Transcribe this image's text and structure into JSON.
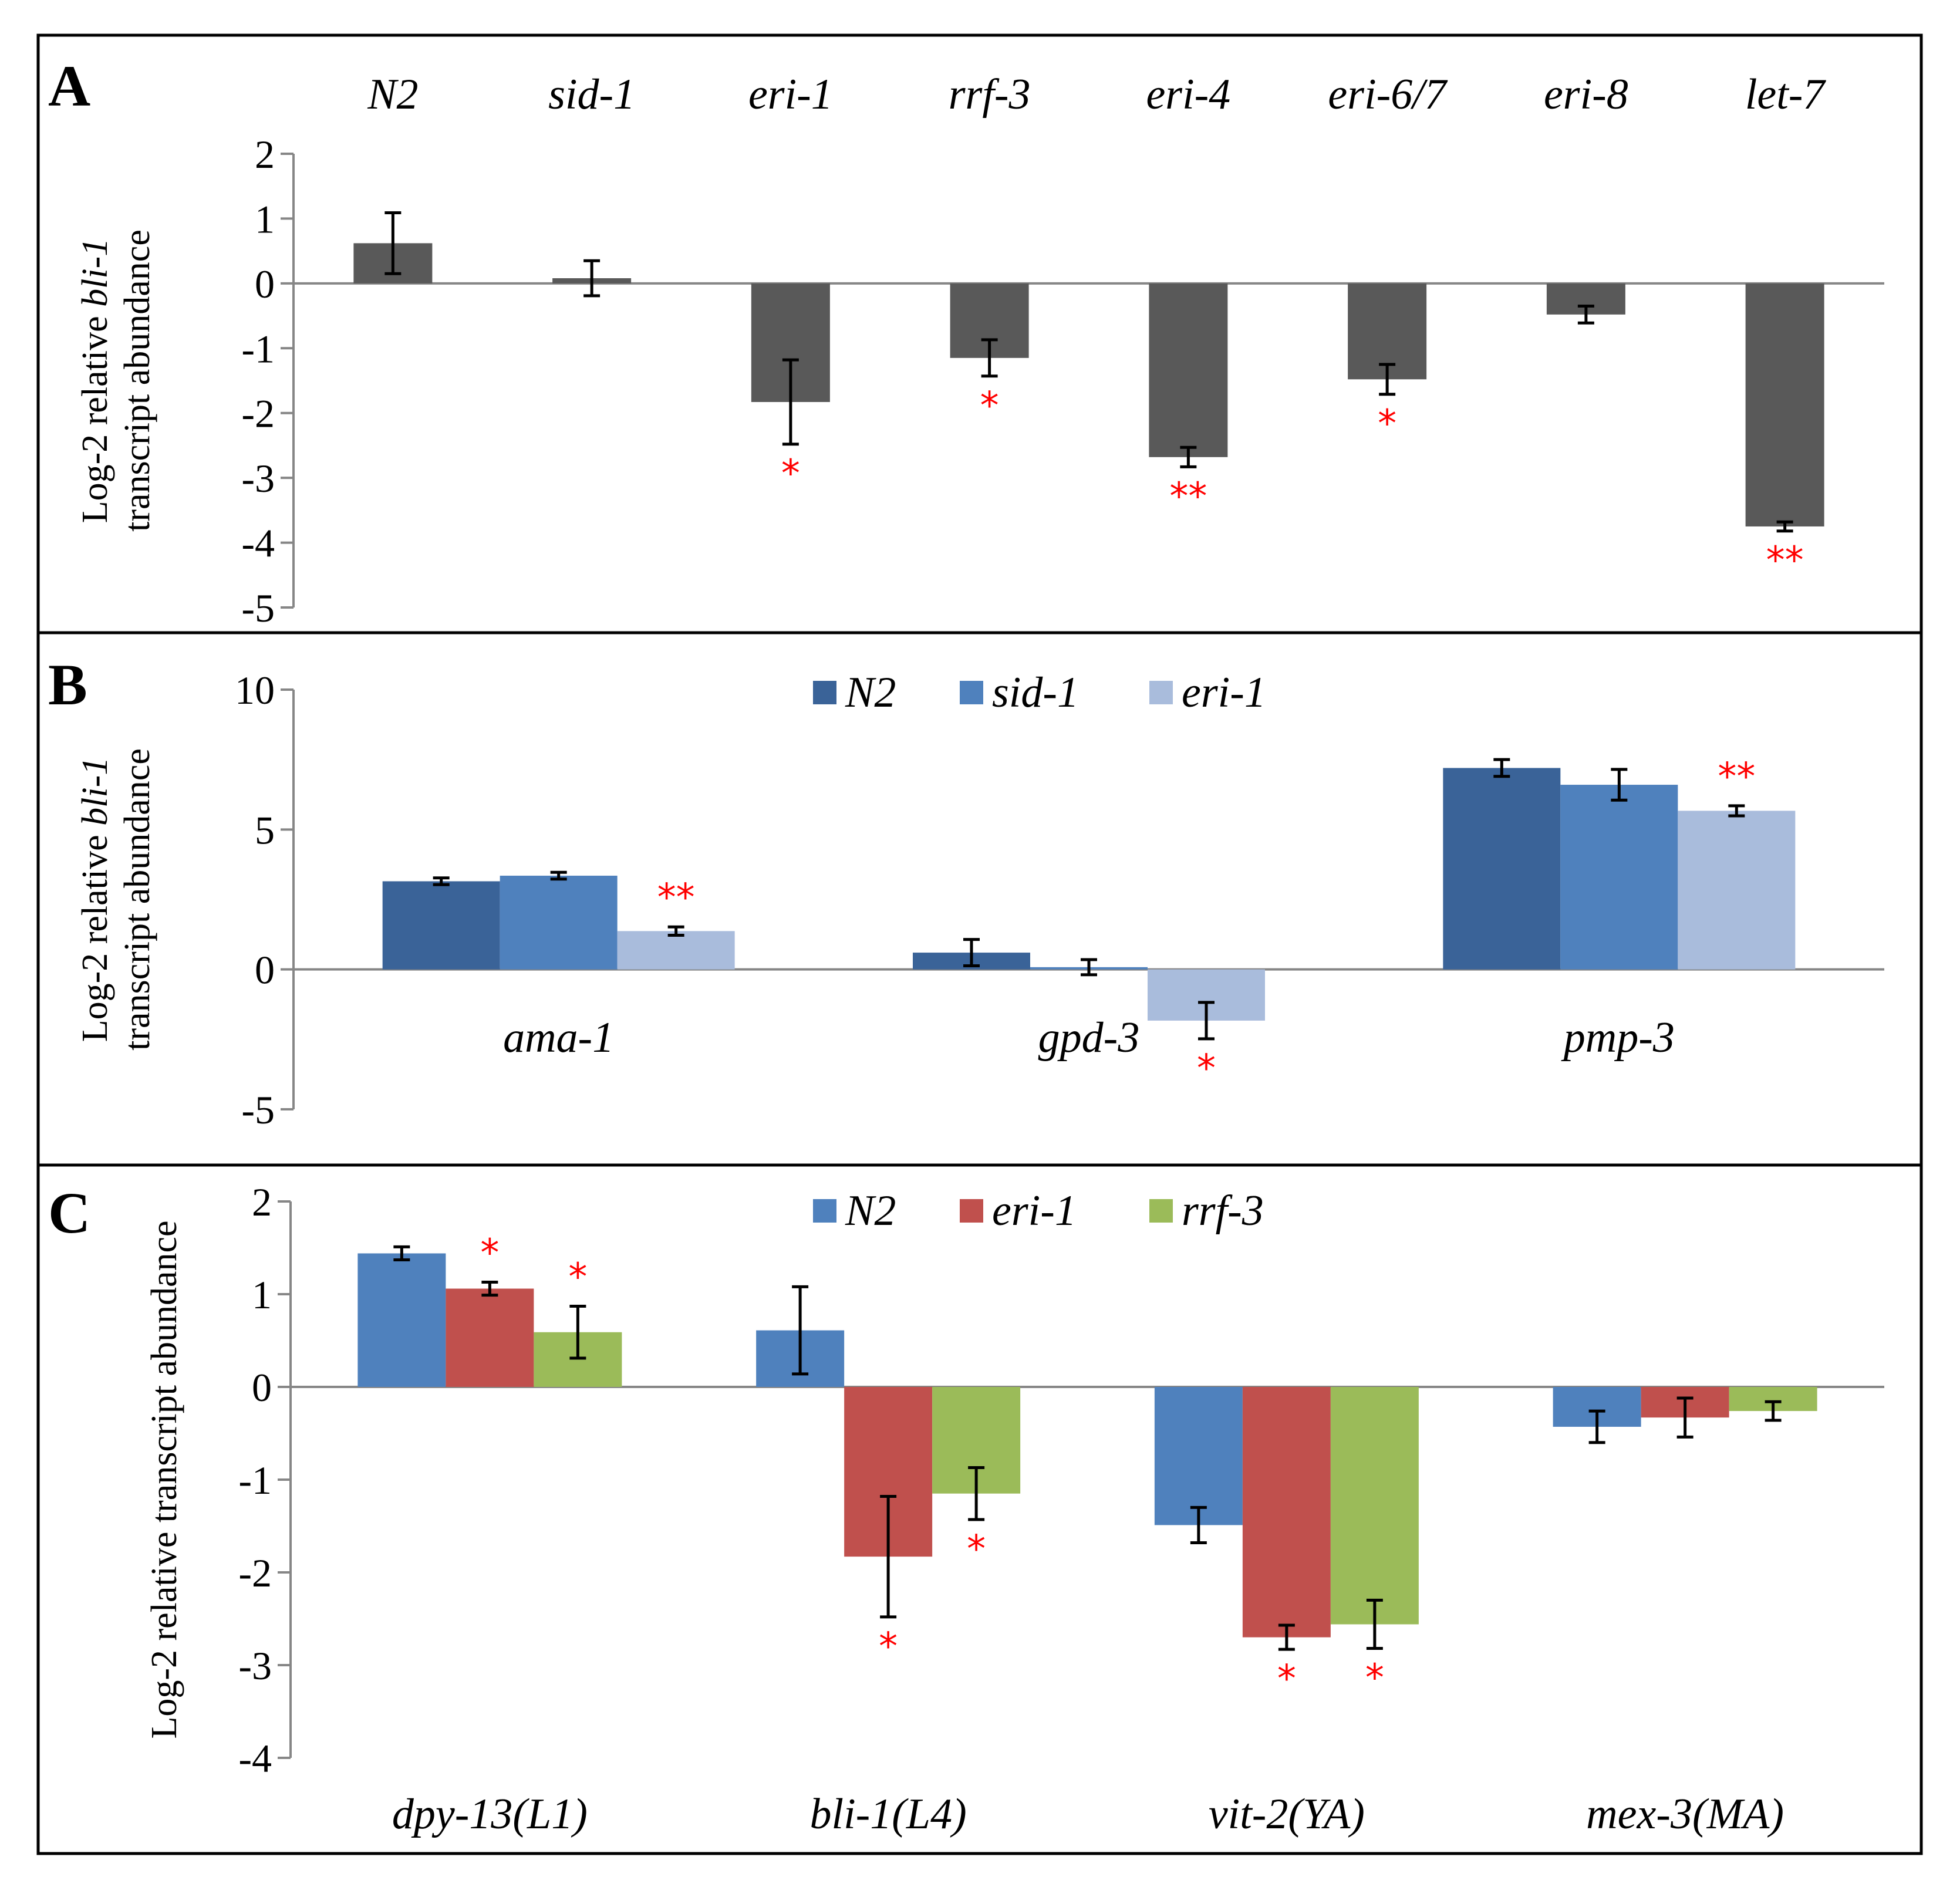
{
  "figure": {
    "panels": [
      {
        "letter": "A",
        "ylabel_parts": [
          "Log-2 relative ",
          "bli-1"
        ],
        "ylabel_line2": "transcript abundance",
        "legend": []
      },
      {
        "letter": "B",
        "ylabel_parts": [
          "Log-2 relative ",
          "bli-1"
        ],
        "ylabel_line2": "transcript abundance",
        "legend": [
          "N2",
          "sid-1",
          "eri-1"
        ]
      },
      {
        "letter": "C",
        "ylabel_parts": [
          "Log-2 relative transcript abundance",
          ""
        ],
        "ylabel_line2": "",
        "legend": [
          "N2",
          "eri-1",
          "rrf-3"
        ]
      }
    ]
  },
  "chart_data": [
    {
      "type": "bar",
      "panel": "A",
      "categories": [
        "N2",
        "sid-1",
        "eri-1",
        "rrf-3",
        "eri-4",
        "eri-6/7",
        "eri-8",
        "let-7"
      ],
      "category_label_position": "top",
      "ylabel": "Log-2 relative bli-1 transcript abundance",
      "ylim": [
        -5,
        2
      ],
      "yticks": [
        "2",
        "1",
        "0",
        "-1",
        "-2",
        "-3",
        "-4",
        "-5"
      ],
      "series": [
        {
          "name": "",
          "color": "#595959",
          "values": [
            0.62,
            0.08,
            -1.83,
            -1.15,
            -2.68,
            -1.48,
            -0.48,
            -3.75
          ],
          "errors": [
            0.47,
            0.27,
            0.65,
            0.28,
            0.15,
            0.23,
            0.13,
            0.07
          ],
          "significance": [
            "",
            "",
            "*",
            "*",
            "**",
            "*",
            "",
            "**"
          ]
        }
      ]
    },
    {
      "type": "bar",
      "panel": "B",
      "categories": [
        "ama-1",
        "gpd-3",
        "pmp-3"
      ],
      "category_label_position": "below-zero",
      "ylabel": "Log-2 relative bli-1 transcript abundance",
      "ylim": [
        -5,
        10
      ],
      "yticks": [
        "10",
        "5",
        "0",
        "-5"
      ],
      "legend_position": "top-center",
      "series": [
        {
          "name": "N2",
          "color": "#3a6398",
          "values": [
            3.15,
            0.6,
            7.2
          ],
          "errors": [
            0.12,
            0.47,
            0.3
          ],
          "significance": [
            "",
            "",
            ""
          ]
        },
        {
          "name": "sid-1",
          "color": "#4f81bd",
          "values": [
            3.35,
            0.08,
            6.6
          ],
          "errors": [
            0.12,
            0.27,
            0.55
          ],
          "significance": [
            "",
            "",
            ""
          ]
        },
        {
          "name": "eri-1",
          "color": "#a9bcdc",
          "values": [
            1.37,
            -1.83,
            5.67
          ],
          "errors": [
            0.15,
            0.65,
            0.18
          ],
          "significance": [
            "**",
            "*",
            "**"
          ]
        }
      ]
    },
    {
      "type": "bar",
      "panel": "C",
      "categories": [
        "dpy-13(L1)",
        "bli-1(L4)",
        "vit-2(YA)",
        "mex-3(MA)"
      ],
      "category_label_position": "bottom",
      "ylabel": "Log-2 relative transcript abundance",
      "ylim": [
        -4,
        2
      ],
      "yticks": [
        "2",
        "1",
        "0",
        "-1",
        "-2",
        "-3",
        "-4"
      ],
      "legend_position": "top-center",
      "series": [
        {
          "name": "N2",
          "color": "#4f81bd",
          "values": [
            1.44,
            0.61,
            -1.49,
            -0.43
          ],
          "errors": [
            0.07,
            0.47,
            0.19,
            0.17
          ],
          "significance": [
            "",
            "",
            "",
            ""
          ]
        },
        {
          "name": "eri-1",
          "color": "#c0504d",
          "values": [
            1.06,
            -1.83,
            -2.7,
            -0.33
          ],
          "errors": [
            0.07,
            0.65,
            0.13,
            0.21
          ],
          "significance": [
            "*",
            "*",
            "*",
            ""
          ]
        },
        {
          "name": "rrf-3",
          "color": "#9bbb59",
          "values": [
            0.59,
            -1.15,
            -2.56,
            -0.26
          ],
          "errors": [
            0.28,
            0.28,
            0.26,
            0.1
          ],
          "significance": [
            "*",
            "*",
            "*",
            ""
          ]
        }
      ]
    }
  ]
}
